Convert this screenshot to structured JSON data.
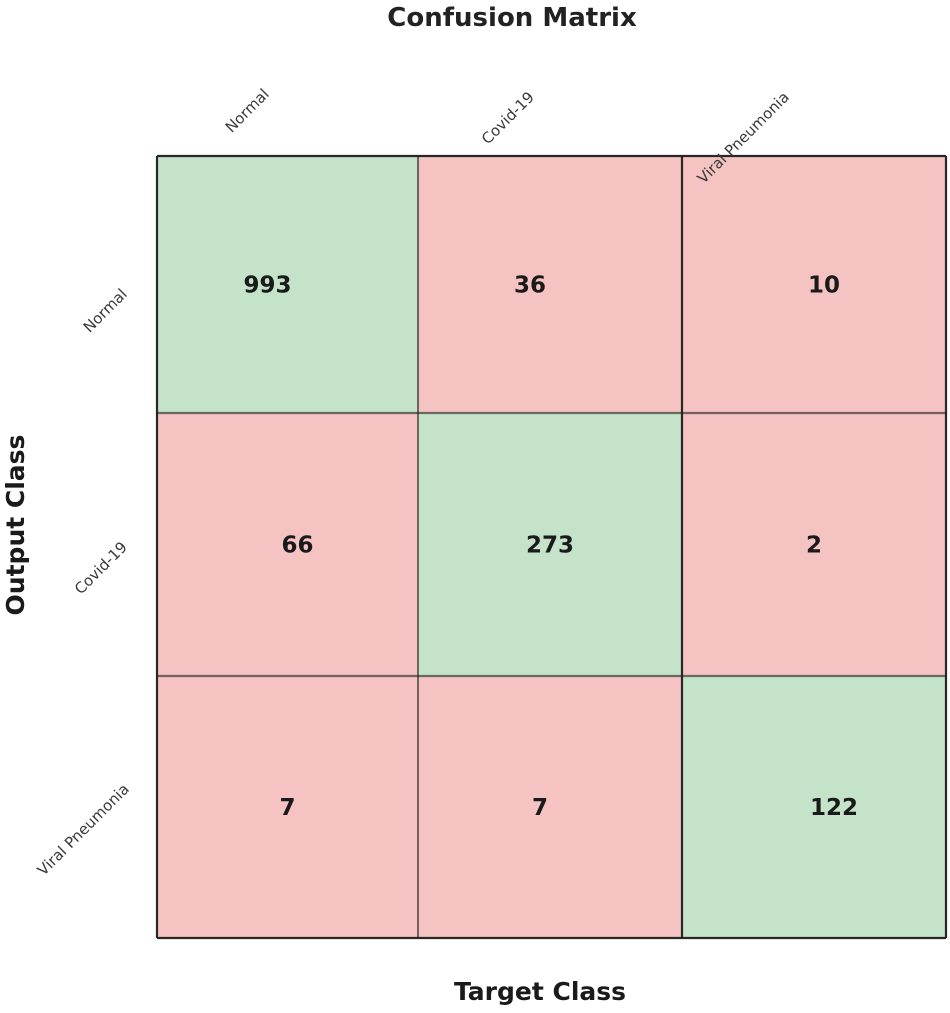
{
  "chart_data": {
    "type": "heatmap",
    "title": "Confusion Matrix",
    "xlabel": "Target Class",
    "ylabel": "Output Class",
    "x_categories": [
      "Normal",
      "Covid-19",
      "Viral Pneumonia"
    ],
    "y_categories": [
      "Normal",
      "Covid-19",
      "Viral Pneumonia"
    ],
    "values": [
      [
        993,
        36,
        10
      ],
      [
        66,
        273,
        2
      ],
      [
        7,
        7,
        122
      ]
    ],
    "grid": true,
    "colors": {
      "correct": "#c4e3c9",
      "incorrect": "#f5c3c1",
      "grid_line": "#1e1e1e"
    }
  }
}
